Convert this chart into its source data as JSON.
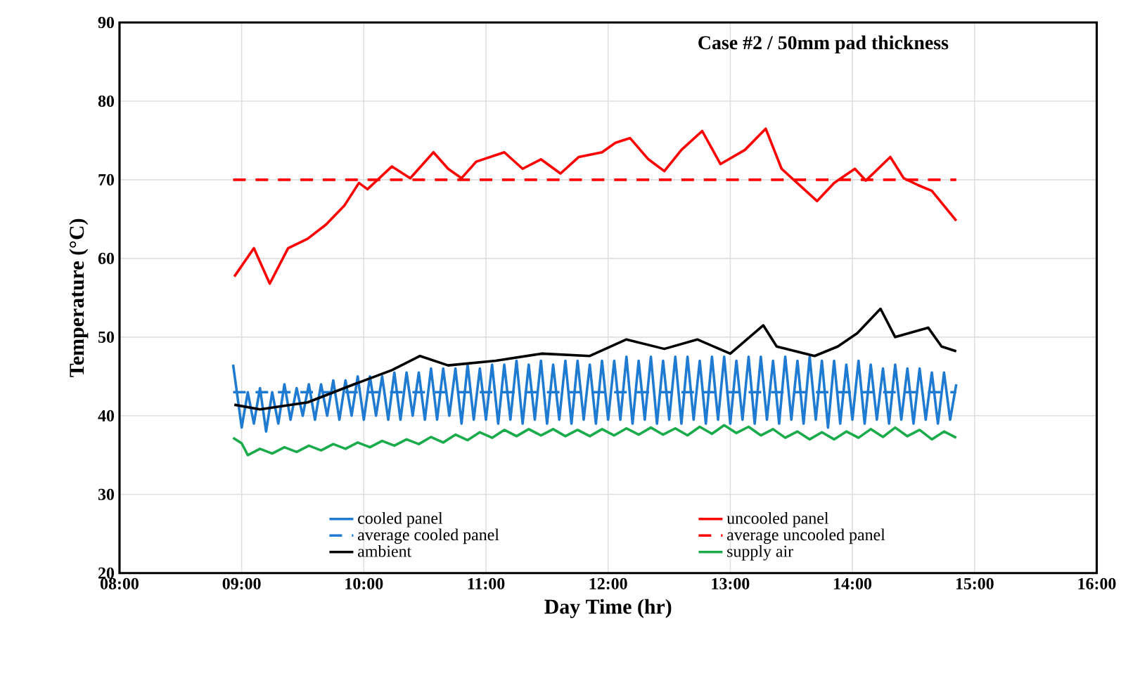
{
  "chart_data": {
    "type": "line",
    "title": "Case #2 / 50mm pad thickness",
    "xlabel": "Day Time (hr)",
    "ylabel": "Temperature (°C)",
    "xlim": [
      8,
      16
    ],
    "ylim": [
      20,
      90
    ],
    "xticks": [
      {
        "value": 8,
        "label": "08:00"
      },
      {
        "value": 9,
        "label": "09:00"
      },
      {
        "value": 10,
        "label": "10:00"
      },
      {
        "value": 11,
        "label": "11:00"
      },
      {
        "value": 12,
        "label": "12:00"
      },
      {
        "value": 13,
        "label": "13:00"
      },
      {
        "value": 14,
        "label": "14:00"
      },
      {
        "value": 15,
        "label": "15:00"
      },
      {
        "value": 16,
        "label": "16:00"
      }
    ],
    "yticks": [
      20,
      30,
      40,
      50,
      60,
      70,
      80,
      90
    ],
    "grid": true,
    "legend": "bottom",
    "marker": "none",
    "series": [
      {
        "name": "cooled panel",
        "color": "#1f7bd1",
        "line_style": "solid",
        "x": [
          8.93,
          9.0,
          9.05,
          9.1,
          9.15,
          9.2,
          9.25,
          9.3,
          9.35,
          9.4,
          9.45,
          9.5,
          9.55,
          9.6,
          9.65,
          9.7,
          9.75,
          9.8,
          9.85,
          9.9,
          9.95,
          10.0,
          10.05,
          10.1,
          10.15,
          10.2,
          10.25,
          10.3,
          10.35,
          10.4,
          10.45,
          10.5,
          10.55,
          10.6,
          10.65,
          10.7,
          10.75,
          10.8,
          10.85,
          10.9,
          10.95,
          11.0,
          11.05,
          11.1,
          11.15,
          11.2,
          11.25,
          11.3,
          11.35,
          11.4,
          11.45,
          11.5,
          11.55,
          11.6,
          11.65,
          11.7,
          11.75,
          11.8,
          11.85,
          11.9,
          11.95,
          12.0,
          12.05,
          12.1,
          12.15,
          12.2,
          12.25,
          12.3,
          12.35,
          12.4,
          12.45,
          12.5,
          12.55,
          12.6,
          12.65,
          12.7,
          12.75,
          12.8,
          12.85,
          12.9,
          12.95,
          13.0,
          13.05,
          13.1,
          13.15,
          13.2,
          13.25,
          13.3,
          13.35,
          13.4,
          13.45,
          13.5,
          13.55,
          13.6,
          13.65,
          13.7,
          13.75,
          13.8,
          13.85,
          13.9,
          13.95,
          14.0,
          14.05,
          14.1,
          14.15,
          14.2,
          14.25,
          14.3,
          14.35,
          14.4,
          14.45,
          14.5,
          14.55,
          14.6,
          14.65,
          14.7,
          14.75,
          14.8,
          14.85
        ],
        "values": [
          46.5,
          38.5,
          43.0,
          39.0,
          43.5,
          38.0,
          43.0,
          39.0,
          44.0,
          39.5,
          43.5,
          40.0,
          44.0,
          39.5,
          44.0,
          40.0,
          44.5,
          39.5,
          44.5,
          40.0,
          45.0,
          39.5,
          45.0,
          40.0,
          45.0,
          39.5,
          45.5,
          39.5,
          45.5,
          40.0,
          45.5,
          39.5,
          46.0,
          39.5,
          46.0,
          40.0,
          46.0,
          39.0,
          46.5,
          39.5,
          46.0,
          39.5,
          46.5,
          39.0,
          46.5,
          39.5,
          47.0,
          39.0,
          46.5,
          39.5,
          47.0,
          39.0,
          46.5,
          39.5,
          47.0,
          39.0,
          47.0,
          39.5,
          46.5,
          39.0,
          47.0,
          39.5,
          47.0,
          39.5,
          47.5,
          39.0,
          47.0,
          39.5,
          47.5,
          39.0,
          47.0,
          39.5,
          47.5,
          39.0,
          47.5,
          39.5,
          47.0,
          39.0,
          47.5,
          39.5,
          47.5,
          39.0,
          47.0,
          39.5,
          47.5,
          39.0,
          47.5,
          39.5,
          47.0,
          39.0,
          47.5,
          39.5,
          47.0,
          39.0,
          47.5,
          39.5,
          47.0,
          38.5,
          47.0,
          39.0,
          46.5,
          39.5,
          47.0,
          39.0,
          46.5,
          39.5,
          46.0,
          39.0,
          46.5,
          39.5,
          46.0,
          39.0,
          46.0,
          39.5,
          45.5,
          39.0,
          45.5,
          39.5,
          44.0
        ]
      },
      {
        "name": "uncooled panel",
        "color": "#ff0000",
        "line_style": "solid",
        "x": [
          8.94,
          9.1,
          9.23,
          9.38,
          9.54,
          9.69,
          9.84,
          9.96,
          10.03,
          10.23,
          10.38,
          10.57,
          10.69,
          10.8,
          10.92,
          11.15,
          11.3,
          11.45,
          11.61,
          11.76,
          11.95,
          12.06,
          12.18,
          12.33,
          12.46,
          12.6,
          12.77,
          12.92,
          13.12,
          13.29,
          13.42,
          13.71,
          13.85,
          14.02,
          14.11,
          14.31,
          14.42,
          14.54,
          14.65,
          14.85
        ],
        "values": [
          57.7,
          61.3,
          56.8,
          61.3,
          62.5,
          64.3,
          66.7,
          69.6,
          68.8,
          71.7,
          70.2,
          73.5,
          71.4,
          70.2,
          72.3,
          73.5,
          71.4,
          72.6,
          70.8,
          72.9,
          73.5,
          74.7,
          75.3,
          72.6,
          71.1,
          73.8,
          76.2,
          72.0,
          73.8,
          76.5,
          71.4,
          67.3,
          69.6,
          71.4,
          69.9,
          72.9,
          70.2,
          69.3,
          68.6,
          64.8
        ]
      },
      {
        "name": "average cooled panel",
        "color": "#1f7bd1",
        "line_style": "dashed",
        "x": [
          8.93,
          14.85
        ],
        "values": [
          43,
          43
        ]
      },
      {
        "name": "average uncooled panel",
        "color": "#ff0000",
        "line_style": "dashed",
        "x": [
          8.93,
          14.85
        ],
        "values": [
          70,
          70
        ]
      },
      {
        "name": "ambient",
        "color": "#000000",
        "line_style": "solid",
        "x": [
          8.94,
          9.15,
          9.54,
          9.92,
          10.23,
          10.46,
          10.69,
          11.08,
          11.46,
          11.85,
          12.15,
          12.46,
          12.73,
          13.0,
          13.27,
          13.38,
          13.69,
          13.88,
          14.04,
          14.23,
          14.35,
          14.62,
          14.73,
          14.85
        ],
        "values": [
          41.4,
          40.8,
          41.7,
          44.0,
          45.8,
          47.6,
          46.4,
          47.0,
          47.9,
          47.6,
          49.7,
          48.5,
          49.7,
          47.9,
          51.5,
          48.8,
          47.6,
          48.8,
          50.5,
          53.6,
          50.0,
          51.2,
          48.8,
          48.2
        ]
      },
      {
        "name": "supply air",
        "color": "#1aab4a",
        "line_style": "solid",
        "x": [
          8.93,
          9.0,
          9.05,
          9.15,
          9.25,
          9.35,
          9.45,
          9.55,
          9.65,
          9.75,
          9.85,
          9.95,
          10.05,
          10.15,
          10.25,
          10.35,
          10.45,
          10.55,
          10.65,
          10.75,
          10.85,
          10.95,
          11.05,
          11.15,
          11.25,
          11.35,
          11.45,
          11.55,
          11.65,
          11.75,
          11.85,
          11.95,
          12.05,
          12.15,
          12.25,
          12.35,
          12.45,
          12.55,
          12.65,
          12.75,
          12.85,
          12.95,
          13.05,
          13.15,
          13.25,
          13.35,
          13.45,
          13.55,
          13.65,
          13.75,
          13.85,
          13.95,
          14.05,
          14.15,
          14.25,
          14.35,
          14.45,
          14.55,
          14.65,
          14.75,
          14.85
        ],
        "values": [
          37.2,
          36.5,
          35.0,
          35.8,
          35.2,
          36.0,
          35.4,
          36.2,
          35.6,
          36.4,
          35.8,
          36.6,
          36.0,
          36.8,
          36.2,
          37.0,
          36.4,
          37.3,
          36.6,
          37.6,
          36.9,
          37.9,
          37.2,
          38.2,
          37.4,
          38.3,
          37.5,
          38.3,
          37.4,
          38.2,
          37.4,
          38.3,
          37.5,
          38.4,
          37.6,
          38.5,
          37.6,
          38.4,
          37.5,
          38.6,
          37.7,
          38.8,
          37.8,
          38.6,
          37.5,
          38.3,
          37.2,
          38.0,
          37.0,
          37.9,
          37.0,
          38.0,
          37.2,
          38.3,
          37.3,
          38.5,
          37.4,
          38.2,
          37.0,
          38.0,
          37.2
        ]
      }
    ]
  }
}
